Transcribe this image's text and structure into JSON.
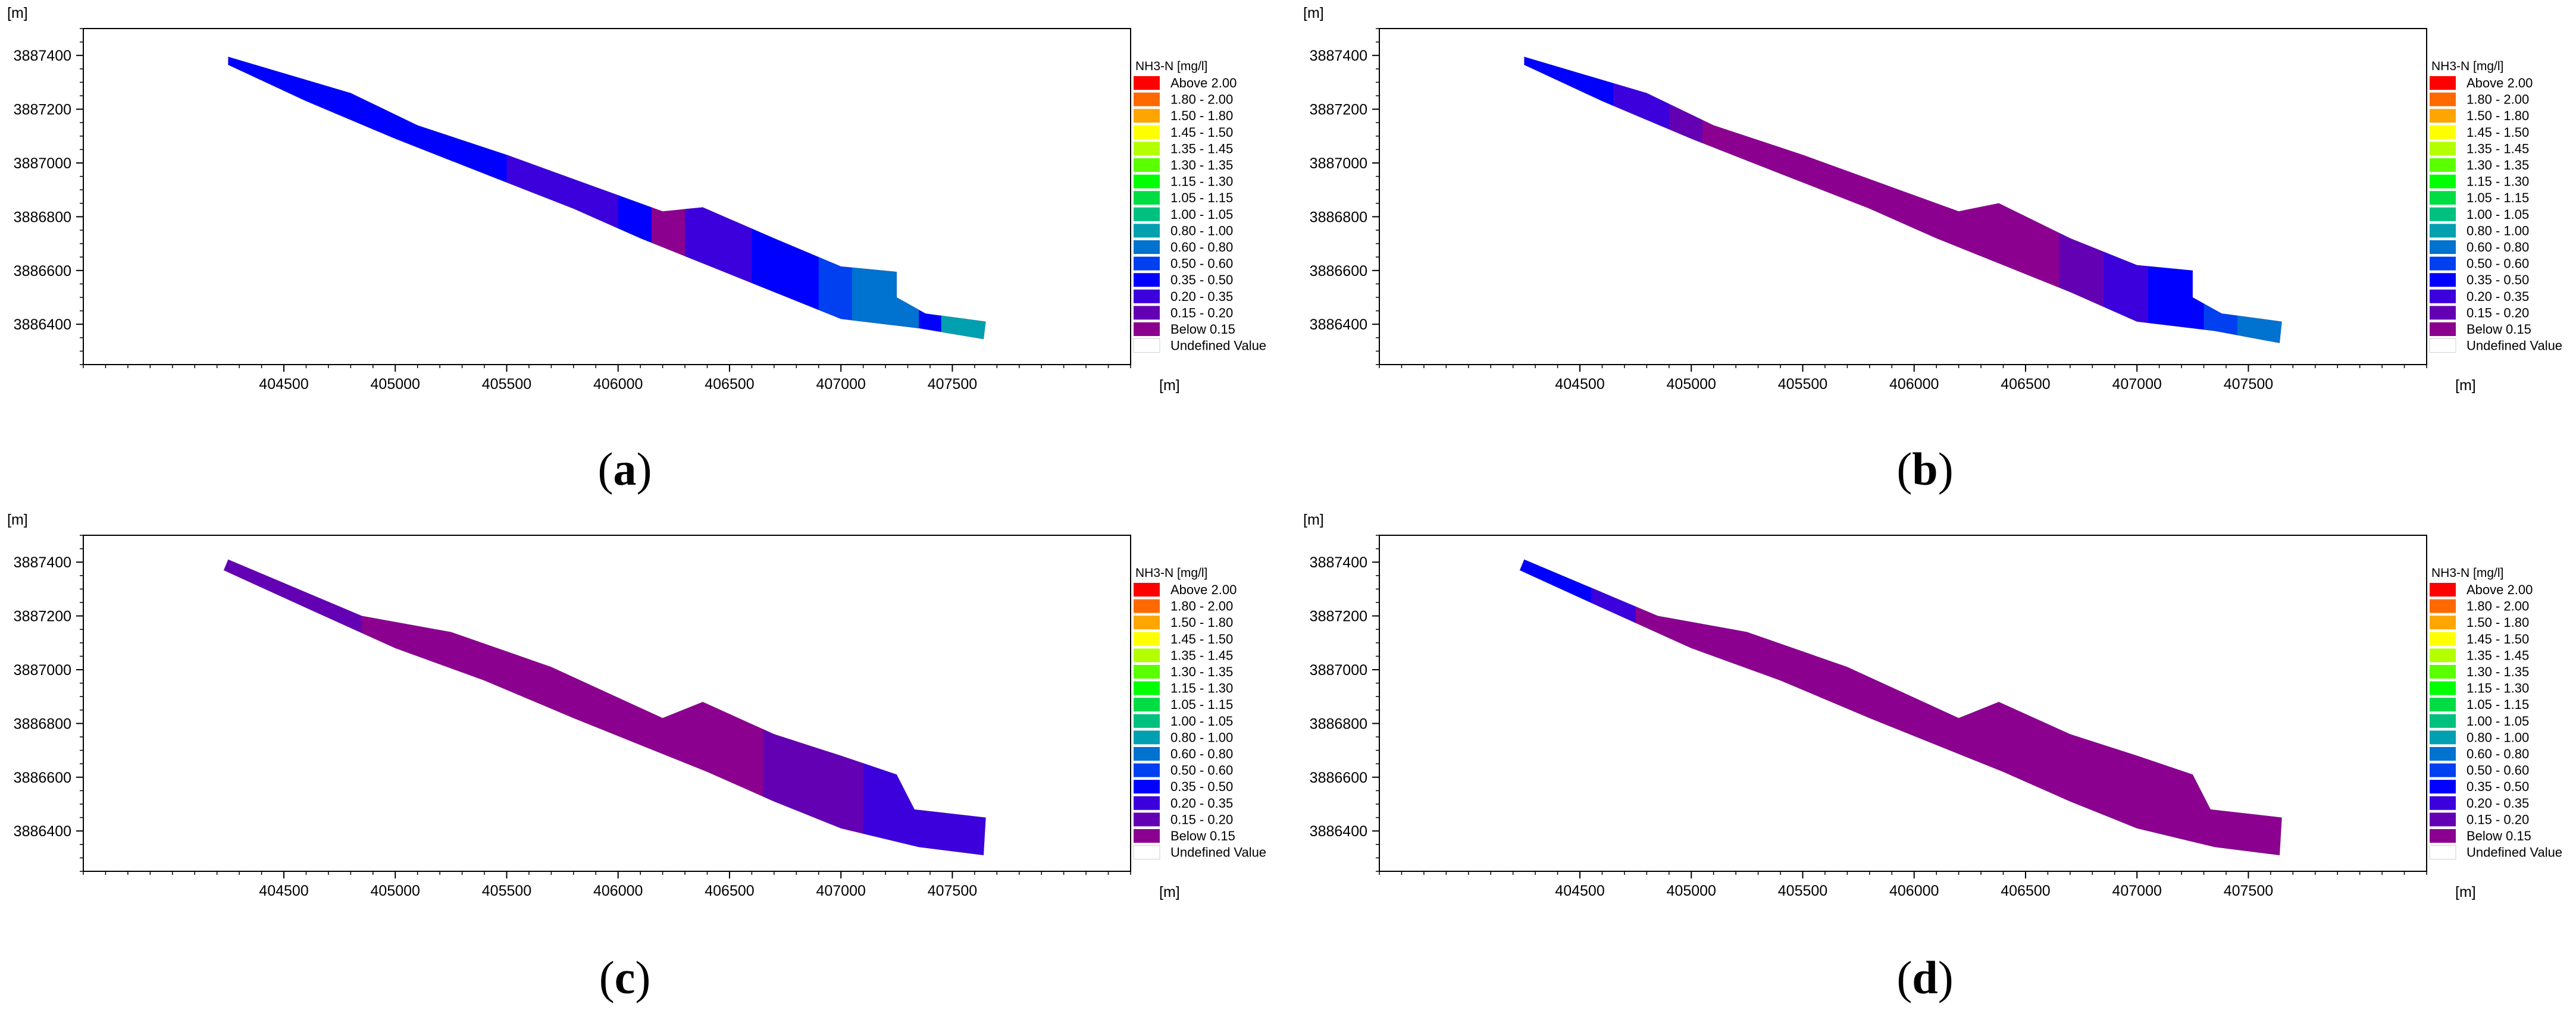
{
  "figure": {
    "captions": [
      "(a)",
      "(b)",
      "(c)",
      "(d)"
    ]
  },
  "colors": {
    "frame": "#000000",
    "background": "#ffffff"
  },
  "chart_data": [
    {
      "panel": "a",
      "type": "heatmap",
      "title": "",
      "xlabel": "[m]",
      "ylabel": "[m]",
      "xticks": [
        404500,
        405000,
        405500,
        406000,
        406500,
        407000,
        407500
      ],
      "yticks": [
        3886400,
        3886600,
        3886800,
        3887000,
        3887200,
        3887400
      ],
      "xlim": [
        403600,
        408300
      ],
      "ylim": [
        3886250,
        3887500
      ],
      "legend_position": "right",
      "legend_title": "NH3-N [mg/l]",
      "legend": [
        {
          "label": "Above 2.00",
          "color": "#ff0000"
        },
        {
          "label": "1.80 - 2.00",
          "color": "#ff6a00"
        },
        {
          "label": "1.50 - 1.80",
          "color": "#ffa500"
        },
        {
          "label": "1.45 - 1.50",
          "color": "#ffff00"
        },
        {
          "label": "1.35 - 1.45",
          "color": "#b4ff00"
        },
        {
          "label": "1.30 - 1.35",
          "color": "#5aff00"
        },
        {
          "label": "1.15 - 1.30",
          "color": "#00ff00"
        },
        {
          "label": "1.05 - 1.15",
          "color": "#00dd44"
        },
        {
          "label": "1.00 - 1.05",
          "color": "#00c080"
        },
        {
          "label": "0.80 - 1.00",
          "color": "#00a0b0"
        },
        {
          "label": "0.60 - 0.80",
          "color": "#0072d0"
        },
        {
          "label": "0.50 - 0.60",
          "color": "#0040f0"
        },
        {
          "label": "0.35 - 0.50",
          "color": "#0000ff"
        },
        {
          "label": "0.20 - 0.35",
          "color": "#3c00dc"
        },
        {
          "label": "0.15 - 0.20",
          "color": "#6400b4"
        },
        {
          "label": "Below 0.15",
          "color": "#8c0090"
        },
        {
          "label": "Undefined Value",
          "color": "#ffffff"
        }
      ],
      "domain_outline": [
        [
          404250,
          3887395
        ],
        [
          404800,
          3887260
        ],
        [
          405100,
          3887140
        ],
        [
          405500,
          3887030
        ],
        [
          405900,
          3886910
        ],
        [
          406200,
          3886820
        ],
        [
          406380,
          3886835
        ],
        [
          406700,
          3886720
        ],
        [
          407000,
          3886615
        ],
        [
          407250,
          3886595
        ],
        [
          407250,
          3886500
        ],
        [
          407380,
          3886440
        ],
        [
          407650,
          3886410
        ],
        [
          407640,
          3886345
        ],
        [
          407350,
          3886385
        ],
        [
          407000,
          3886420
        ],
        [
          406700,
          3886520
        ],
        [
          406400,
          3886620
        ],
        [
          406100,
          3886720
        ],
        [
          405800,
          3886830
        ],
        [
          405400,
          3886960
        ],
        [
          405000,
          3887090
        ],
        [
          404600,
          3887230
        ],
        [
          404250,
          3887365
        ]
      ],
      "zones": [
        {
          "class": "0.35 - 0.50",
          "x_range": [
            404250,
            406150
          ]
        },
        {
          "class": "0.20 - 0.35",
          "x_range": [
            405500,
            406000
          ]
        },
        {
          "class": "Below 0.15",
          "x_range": [
            406150,
            406420
          ]
        },
        {
          "class": "0.20 - 0.35",
          "x_range": [
            406300,
            406600
          ]
        },
        {
          "class": "0.35 - 0.50",
          "x_range": [
            406600,
            406900
          ]
        },
        {
          "class": "0.50 - 0.60",
          "x_range": [
            406900,
            407250
          ]
        },
        {
          "class": "0.60 - 0.80",
          "x_range": [
            407050,
            407350
          ]
        },
        {
          "class": "0.80 - 1.00",
          "x_range": [
            407450,
            407650
          ]
        }
      ]
    },
    {
      "panel": "b",
      "type": "heatmap",
      "title": "",
      "xlabel": "[m]",
      "ylabel": "[m]",
      "xticks": [
        404500,
        405000,
        405500,
        406000,
        406500,
        407000,
        407500
      ],
      "yticks": [
        3886400,
        3886600,
        3886800,
        3887000,
        3887200,
        3887400
      ],
      "xlim": [
        403600,
        408300
      ],
      "ylim": [
        3886250,
        3887500
      ],
      "legend_position": "right",
      "legend_title": "NH3-N [mg/l]",
      "legend": [
        {
          "label": "Above 2.00",
          "color": "#ff0000"
        },
        {
          "label": "1.80 - 2.00",
          "color": "#ff6a00"
        },
        {
          "label": "1.50 - 1.80",
          "color": "#ffa500"
        },
        {
          "label": "1.45 - 1.50",
          "color": "#ffff00"
        },
        {
          "label": "1.35 - 1.45",
          "color": "#b4ff00"
        },
        {
          "label": "1.30 - 1.35",
          "color": "#5aff00"
        },
        {
          "label": "1.15 - 1.30",
          "color": "#00ff00"
        },
        {
          "label": "1.05 - 1.15",
          "color": "#00dd44"
        },
        {
          "label": "1.00 - 1.05",
          "color": "#00c080"
        },
        {
          "label": "0.80 - 1.00",
          "color": "#00a0b0"
        },
        {
          "label": "0.60 - 0.80",
          "color": "#0072d0"
        },
        {
          "label": "0.50 - 0.60",
          "color": "#0040f0"
        },
        {
          "label": "0.35 - 0.50",
          "color": "#0000ff"
        },
        {
          "label": "0.20 - 0.35",
          "color": "#3c00dc"
        },
        {
          "label": "0.15 - 0.20",
          "color": "#6400b4"
        },
        {
          "label": "Below 0.15",
          "color": "#8c0090"
        },
        {
          "label": "Undefined Value",
          "color": "#ffffff"
        }
      ],
      "domain_outline": [
        [
          404250,
          3887395
        ],
        [
          404800,
          3887260
        ],
        [
          405100,
          3887140
        ],
        [
          405500,
          3887030
        ],
        [
          405900,
          3886910
        ],
        [
          406200,
          3886820
        ],
        [
          406380,
          3886850
        ],
        [
          406700,
          3886720
        ],
        [
          407000,
          3886620
        ],
        [
          407250,
          3886600
        ],
        [
          407250,
          3886500
        ],
        [
          407380,
          3886440
        ],
        [
          407650,
          3886410
        ],
        [
          407640,
          3886330
        ],
        [
          407350,
          3886375
        ],
        [
          407000,
          3886410
        ],
        [
          406700,
          3886520
        ],
        [
          406400,
          3886620
        ],
        [
          406100,
          3886720
        ],
        [
          405800,
          3886830
        ],
        [
          405400,
          3886960
        ],
        [
          405000,
          3887090
        ],
        [
          404600,
          3887230
        ],
        [
          404250,
          3887365
        ]
      ],
      "zones": [
        {
          "class": "0.35 - 0.50",
          "x_range": [
            404250,
            404650
          ]
        },
        {
          "class": "0.20 - 0.35",
          "x_range": [
            404650,
            404900
          ]
        },
        {
          "class": "0.15 - 0.20",
          "x_range": [
            404900,
            405050
          ]
        },
        {
          "class": "Below 0.15",
          "x_range": [
            405050,
            406650
          ]
        },
        {
          "class": "0.15 - 0.20",
          "x_range": [
            406650,
            406850
          ]
        },
        {
          "class": "0.20 - 0.35",
          "x_range": [
            406850,
            407050
          ]
        },
        {
          "class": "0.35 - 0.50",
          "x_range": [
            407050,
            407300
          ]
        },
        {
          "class": "0.50 - 0.60",
          "x_range": [
            407300,
            407450
          ]
        },
        {
          "class": "0.60 - 0.80",
          "x_range": [
            407450,
            407650
          ]
        }
      ]
    },
    {
      "panel": "c",
      "type": "heatmap",
      "title": "",
      "xlabel": "[m]",
      "ylabel": "[m]",
      "xticks": [
        404500,
        405000,
        405500,
        406000,
        406500,
        407000,
        407500
      ],
      "yticks": [
        3886400,
        3886600,
        3886800,
        3887000,
        3887200,
        3887400
      ],
      "xlim": [
        403600,
        408300
      ],
      "ylim": [
        3886250,
        3887500
      ],
      "legend_position": "right",
      "legend_title": "NH3-N [mg/l]",
      "legend": [
        {
          "label": "Above 2.00",
          "color": "#ff0000"
        },
        {
          "label": "1.80 - 2.00",
          "color": "#ff6a00"
        },
        {
          "label": "1.50 - 1.80",
          "color": "#ffa500"
        },
        {
          "label": "1.45 - 1.50",
          "color": "#ffff00"
        },
        {
          "label": "1.35 - 1.45",
          "color": "#b4ff00"
        },
        {
          "label": "1.30 - 1.35",
          "color": "#5aff00"
        },
        {
          "label": "1.15 - 1.30",
          "color": "#00ff00"
        },
        {
          "label": "1.05 - 1.15",
          "color": "#00dd44"
        },
        {
          "label": "1.00 - 1.05",
          "color": "#00c080"
        },
        {
          "label": "0.80 - 1.00",
          "color": "#00a0b0"
        },
        {
          "label": "0.60 - 0.80",
          "color": "#0072d0"
        },
        {
          "label": "0.50 - 0.60",
          "color": "#0040f0"
        },
        {
          "label": "0.35 - 0.50",
          "color": "#0000ff"
        },
        {
          "label": "0.20 - 0.35",
          "color": "#3c00dc"
        },
        {
          "label": "0.15 - 0.20",
          "color": "#6400b4"
        },
        {
          "label": "Below 0.15",
          "color": "#8c0090"
        },
        {
          "label": "Undefined Value",
          "color": "#ffffff"
        }
      ],
      "domain_outline": [
        [
          404250,
          3887410
        ],
        [
          404850,
          3887200
        ],
        [
          405250,
          3887140
        ],
        [
          405700,
          3887010
        ],
        [
          406200,
          3886820
        ],
        [
          406380,
          3886880
        ],
        [
          406700,
          3886760
        ],
        [
          407000,
          3886680
        ],
        [
          407250,
          3886610
        ],
        [
          407330,
          3886480
        ],
        [
          407650,
          3886450
        ],
        [
          407640,
          3886310
        ],
        [
          407350,
          3886340
        ],
        [
          407000,
          3886410
        ],
        [
          406700,
          3886510
        ],
        [
          406400,
          3886620
        ],
        [
          406100,
          3886720
        ],
        [
          405800,
          3886820
        ],
        [
          405400,
          3886960
        ],
        [
          405000,
          3887080
        ],
        [
          404600,
          3887230
        ],
        [
          404230,
          3887370
        ]
      ],
      "zones": [
        {
          "class": "0.15 - 0.20",
          "x_range": [
            404250,
            404850
          ]
        },
        {
          "class": "Below 0.15",
          "x_range": [
            404850,
            406800
          ]
        },
        {
          "class": "0.15 - 0.20",
          "x_range": [
            406650,
            407150
          ]
        },
        {
          "class": "0.20 - 0.35",
          "x_range": [
            407100,
            407650
          ]
        }
      ]
    },
    {
      "panel": "d",
      "type": "heatmap",
      "title": "",
      "xlabel": "[m]",
      "ylabel": "[m]",
      "xticks": [
        404500,
        405000,
        405500,
        406000,
        406500,
        407000,
        407500
      ],
      "yticks": [
        3886400,
        3886600,
        3886800,
        3887000,
        3887200,
        3887400
      ],
      "xlim": [
        403600,
        408300
      ],
      "ylim": [
        3886250,
        3887500
      ],
      "legend_position": "right",
      "legend_title": "NH3-N [mg/l]",
      "legend": [
        {
          "label": "Above 2.00",
          "color": "#ff0000"
        },
        {
          "label": "1.80 - 2.00",
          "color": "#ff6a00"
        },
        {
          "label": "1.50 - 1.80",
          "color": "#ffa500"
        },
        {
          "label": "1.45 - 1.50",
          "color": "#ffff00"
        },
        {
          "label": "1.35 - 1.45",
          "color": "#b4ff00"
        },
        {
          "label": "1.30 - 1.35",
          "color": "#5aff00"
        },
        {
          "label": "1.15 - 1.30",
          "color": "#00ff00"
        },
        {
          "label": "1.05 - 1.15",
          "color": "#00dd44"
        },
        {
          "label": "1.00 - 1.05",
          "color": "#00c080"
        },
        {
          "label": "0.80 - 1.00",
          "color": "#00a0b0"
        },
        {
          "label": "0.60 - 0.80",
          "color": "#0072d0"
        },
        {
          "label": "0.50 - 0.60",
          "color": "#0040f0"
        },
        {
          "label": "0.35 - 0.50",
          "color": "#0000ff"
        },
        {
          "label": "0.20 - 0.35",
          "color": "#3c00dc"
        },
        {
          "label": "0.15 - 0.20",
          "color": "#6400b4"
        },
        {
          "label": "Below 0.15",
          "color": "#8c0090"
        },
        {
          "label": "Undefined Value",
          "color": "#ffffff"
        }
      ],
      "domain_outline": [
        [
          404250,
          3887410
        ],
        [
          404850,
          3887200
        ],
        [
          405250,
          3887140
        ],
        [
          405700,
          3887010
        ],
        [
          406200,
          3886820
        ],
        [
          406380,
          3886880
        ],
        [
          406700,
          3886760
        ],
        [
          407000,
          3886680
        ],
        [
          407250,
          3886610
        ],
        [
          407330,
          3886480
        ],
        [
          407650,
          3886450
        ],
        [
          407640,
          3886310
        ],
        [
          407350,
          3886340
        ],
        [
          407000,
          3886410
        ],
        [
          406700,
          3886510
        ],
        [
          406400,
          3886620
        ],
        [
          406100,
          3886720
        ],
        [
          405800,
          3886820
        ],
        [
          405400,
          3886960
        ],
        [
          405000,
          3887080
        ],
        [
          404600,
          3887230
        ],
        [
          404230,
          3887370
        ]
      ],
      "zones": [
        {
          "class": "0.35 - 0.50",
          "x_range": [
            404250,
            404600
          ]
        },
        {
          "class": "0.20 - 0.35",
          "x_range": [
            404550,
            404750
          ]
        },
        {
          "class": "Below 0.15",
          "x_range": [
            404750,
            407650
          ]
        }
      ]
    }
  ]
}
